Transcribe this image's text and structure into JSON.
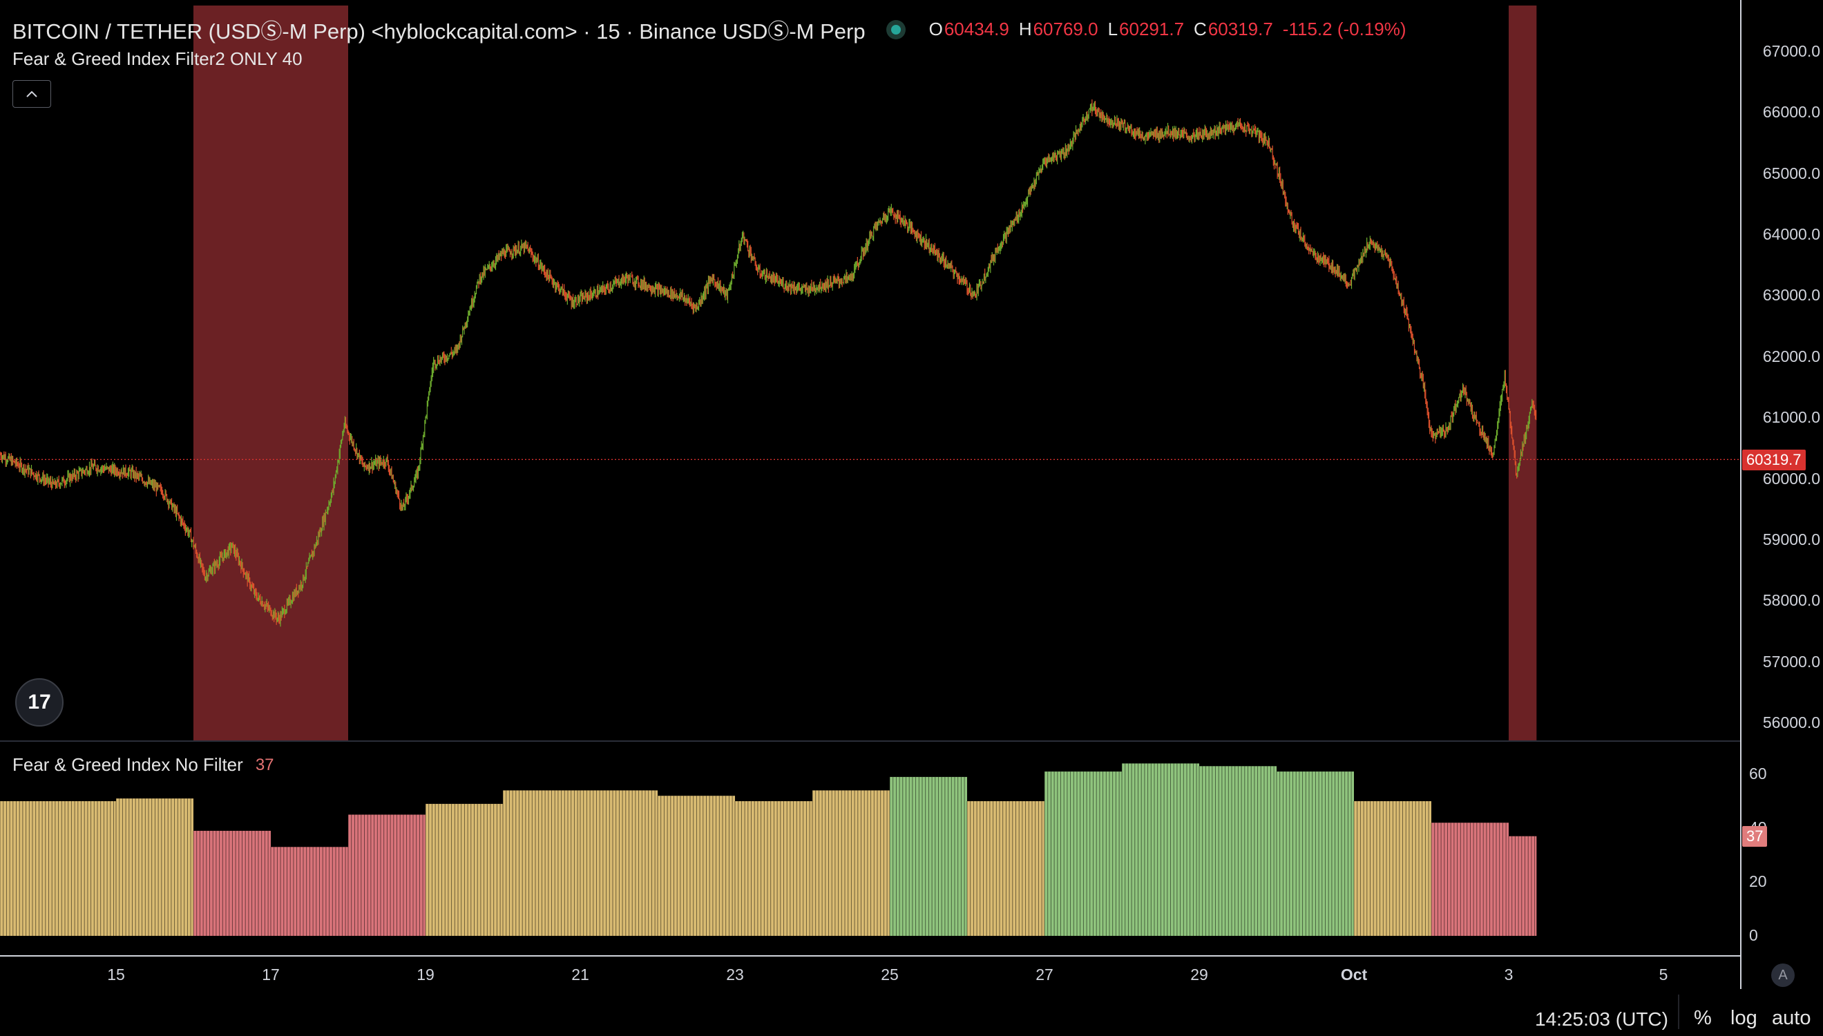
{
  "header": {
    "symbol_title": "BITCOIN / TETHER (USDⓈ-M Perp) <hyblockcapital.com> · 15 · Binance USDⓈ-M Perp",
    "ohlc": {
      "open_label": "O",
      "open": "60434.9",
      "high_label": "H",
      "high": "60769.0",
      "low_label": "L",
      "low": "60291.7",
      "close_label": "C",
      "close": "60319.7",
      "change": "-115.2 (-0.19%)"
    },
    "overlay_indicator": "Fear & Greed Index Filter2 ONLY 40",
    "collapse_icon": "chevron-up-icon",
    "logo_text": "17"
  },
  "price_axis": {
    "ticks": [
      "67000.0",
      "66000.0",
      "65000.0",
      "64000.0",
      "63000.0",
      "62000.0",
      "61000.0",
      "60000.0",
      "59000.0",
      "58000.0",
      "57000.0",
      "56000.0"
    ],
    "last_price": "60319.7"
  },
  "sub_pane": {
    "label": "Fear & Greed Index No Filter",
    "value": "37",
    "ticks": [
      "60",
      "40",
      "20",
      "0"
    ],
    "last_value": "37"
  },
  "time_axis": {
    "labels": [
      "15",
      "17",
      "19",
      "21",
      "23",
      "25",
      "27",
      "29",
      "Oct",
      "3",
      "5"
    ]
  },
  "footer": {
    "clock": "14:25:03 (UTC)",
    "percent_btn": "%",
    "log_btn": "log",
    "auto_btn": "auto",
    "auto_scale_badge": "A"
  },
  "colors": {
    "up": "#26a69a",
    "down": "#ef5350",
    "candle_up": "#6fae2e",
    "candle_down": "#e0522d",
    "fear_zone": "#6b2124",
    "greed": "#8fc47d",
    "neutral": "#d9bb72",
    "fear": "#d9747a"
  },
  "chart_data": [
    {
      "type": "line",
      "title": "BITCOIN / TETHER (USDⓈ-M Perp) · 15",
      "x": [
        "Sep 14",
        "Sep 15",
        "Sep 16",
        "Sep 17",
        "Sep 18",
        "Sep 19",
        "Sep 20",
        "Sep 21",
        "Sep 22",
        "Sep 23",
        "Sep 24",
        "Sep 25",
        "Sep 26",
        "Sep 27",
        "Sep 28",
        "Sep 29",
        "Sep 30",
        "Oct 1",
        "Oct 2",
        "Oct 3"
      ],
      "series": [
        {
          "values": [
            60200,
            60000,
            58600,
            57800,
            60500,
            60200,
            63900,
            63100,
            63300,
            63000,
            63400,
            64100,
            63100,
            64800,
            66100,
            65600,
            64200,
            63600,
            60900,
            60319.7
          ]
        }
      ],
      "ylim": [
        56000,
        67000
      ],
      "highlight_zones": [
        [
          "Sep 16",
          "Sep 18"
        ],
        [
          "Oct 3",
          "Oct 3.6"
        ]
      ]
    },
    {
      "type": "bar",
      "title": "Fear & Greed Index No Filter",
      "categories": [
        "Sep 14",
        "Sep 15",
        "Sep 16",
        "Sep 17",
        "Sep 18",
        "Sep 19",
        "Sep 20",
        "Sep 21",
        "Sep 22",
        "Sep 23",
        "Sep 24",
        "Sep 25",
        "Sep 26",
        "Sep 27",
        "Sep 28",
        "Sep 29",
        "Sep 30",
        "Oct 1",
        "Oct 2",
        "Oct 3"
      ],
      "values": [
        50,
        51,
        39,
        33,
        45,
        49,
        54,
        54,
        52,
        50,
        54,
        59,
        50,
        61,
        64,
        63,
        61,
        50,
        42,
        37
      ],
      "ylim": [
        0,
        65
      ]
    }
  ]
}
